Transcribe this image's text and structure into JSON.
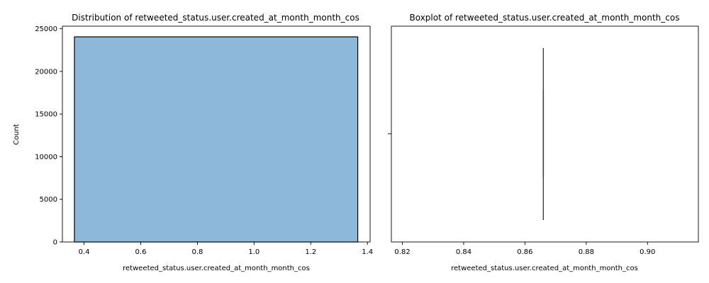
{
  "chart_data": [
    {
      "type": "bar",
      "title": "Distribution of retweeted_status.user.created_at_month_month_cos",
      "xlabel": "retweeted_status.user.created_at_month_month_cos",
      "ylabel": "Count",
      "xlim": [
        0.3235,
        1.4095
      ],
      "ylim": [
        0,
        25300
      ],
      "xticks": [
        0.4,
        0.6,
        0.8,
        1.0,
        1.2,
        1.4
      ],
      "xtick_labels": [
        "0.4",
        "0.6",
        "0.8",
        "1.0",
        "1.2",
        "1.4"
      ],
      "yticks": [
        0,
        5000,
        10000,
        15000,
        20000,
        25000
      ],
      "ytick_labels": [
        "0",
        "5000",
        "10000",
        "15000",
        "20000",
        "25000"
      ],
      "bins": [
        {
          "x0": 0.366,
          "x1": 1.366,
          "count": 24050
        }
      ],
      "bar_color": "#8db8da",
      "bar_edge_color": "#000000",
      "grid": false
    },
    {
      "type": "box",
      "title": "Boxplot of retweeted_status.user.created_at_month_month_cos",
      "xlabel": "retweeted_status.user.created_at_month_month_cos",
      "xlim": [
        0.8164,
        0.9166
      ],
      "xticks": [
        0.82,
        0.84,
        0.86,
        0.88,
        0.9
      ],
      "xtick_labels": [
        "0.82",
        "0.84",
        "0.86",
        "0.88",
        "0.90"
      ],
      "box": {
        "min": 0.866,
        "q1": 0.866,
        "median": 0.866,
        "q3": 0.866,
        "max": 0.866
      },
      "box_color": "#8db8da",
      "line_color": "#3d3d3d",
      "grid": false
    }
  ]
}
